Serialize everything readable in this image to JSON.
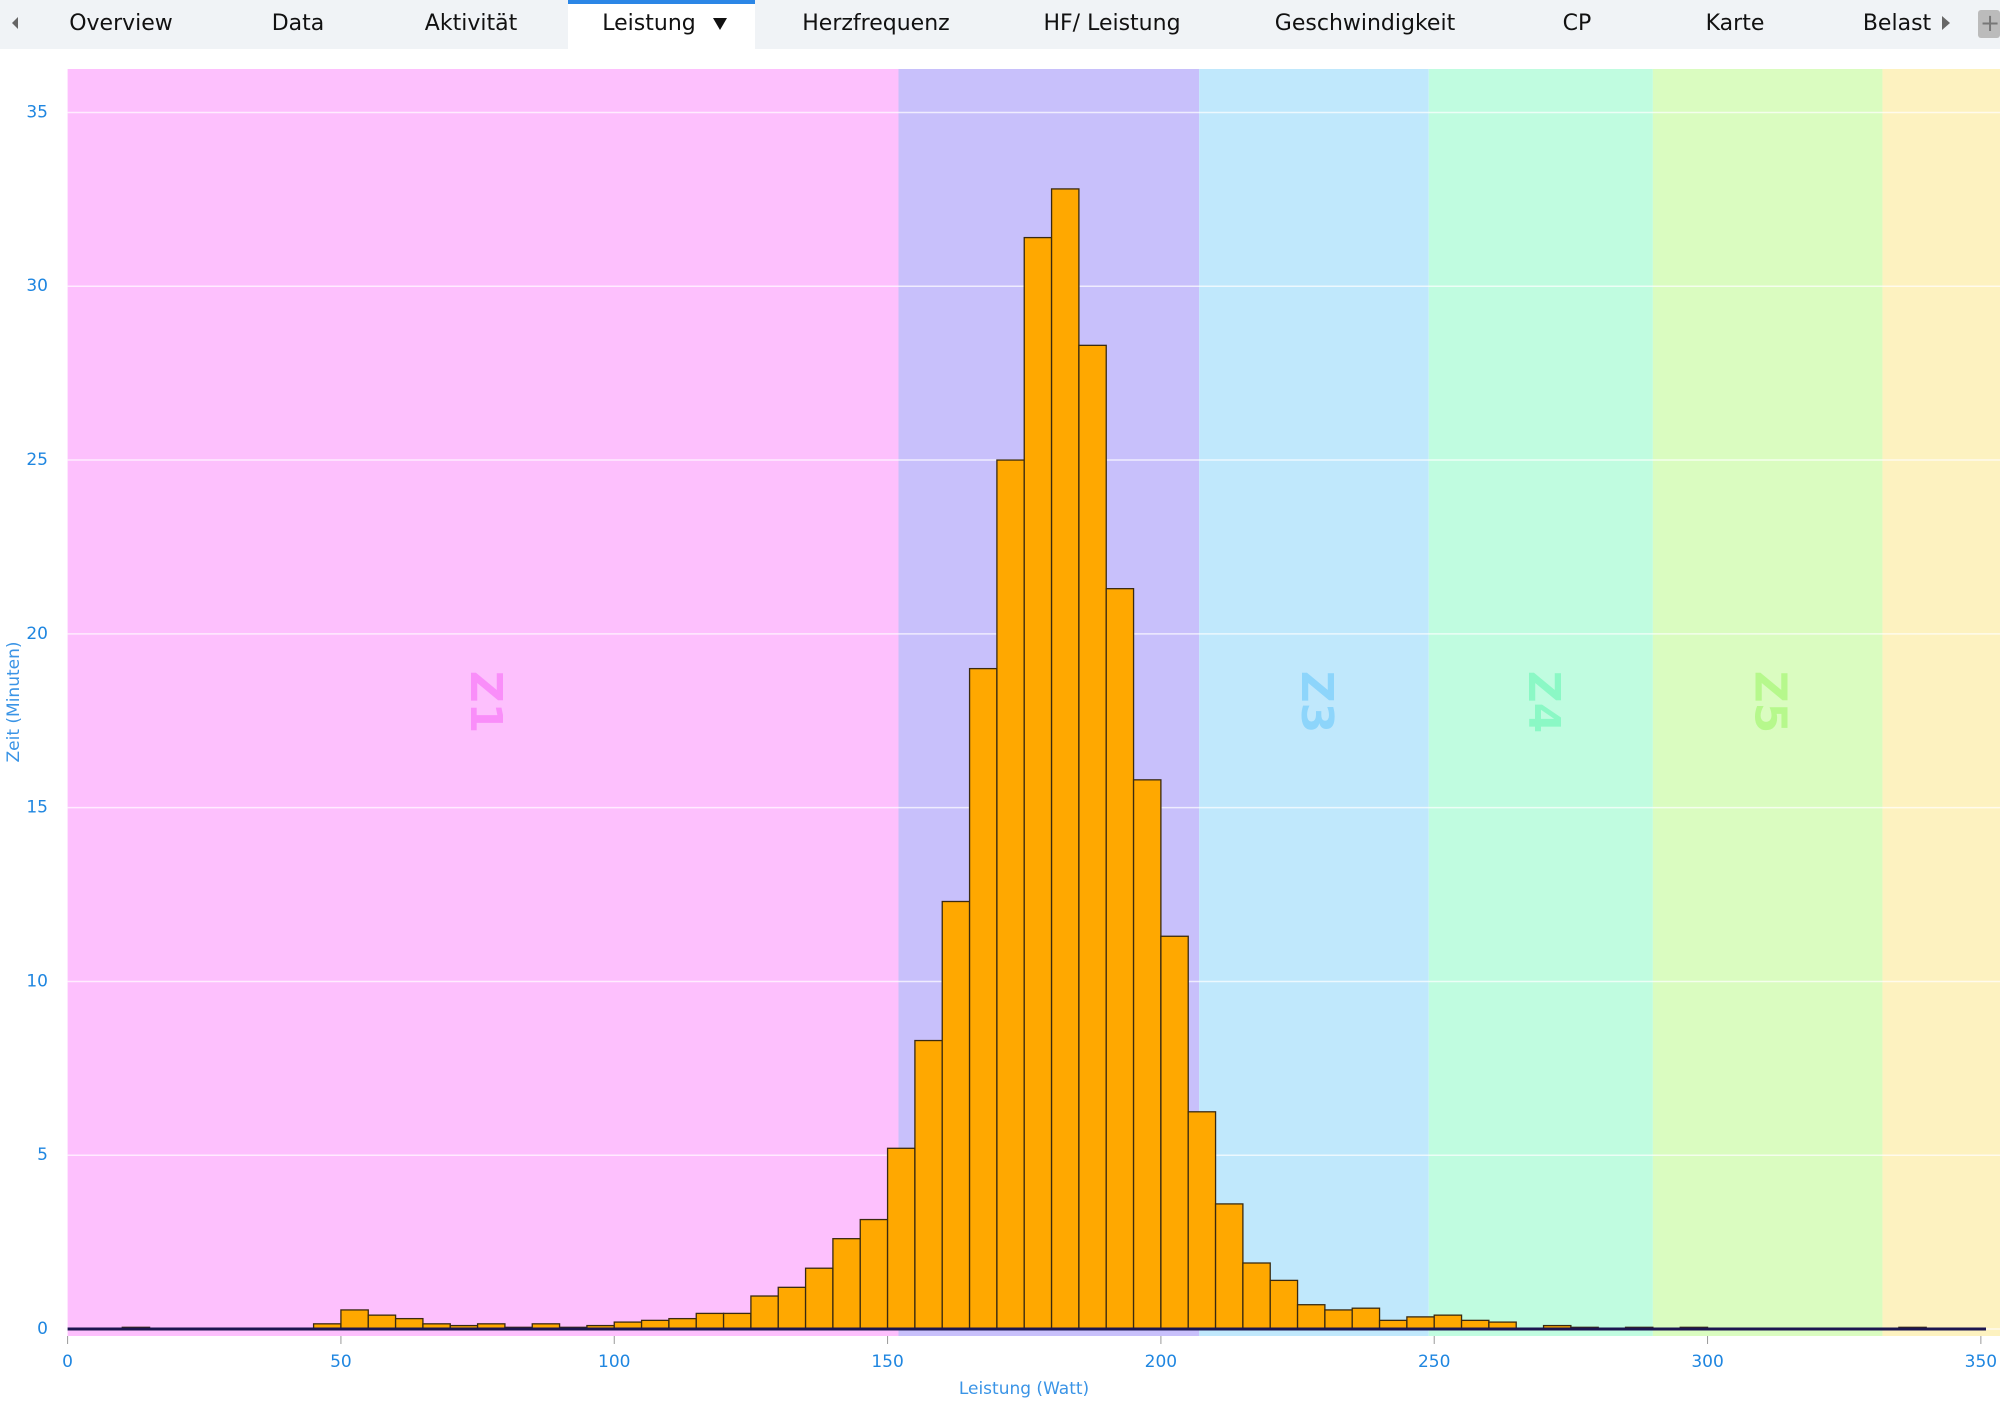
{
  "tabs": [
    {
      "label": "Overview"
    },
    {
      "label": "Data"
    },
    {
      "label": "Aktivität"
    },
    {
      "label": "Leistung",
      "active": true
    },
    {
      "label": "Herzfrequenz"
    },
    {
      "label": "HF/ Leistung"
    },
    {
      "label": "Geschwindigkeit"
    },
    {
      "label": "CP"
    },
    {
      "label": "Karte"
    },
    {
      "label": "Belast"
    }
  ],
  "chart_data": {
    "type": "histogram",
    "xlabel": "Leistung (Watt)",
    "ylabel": "Zeit (Minuten)",
    "bins": [
      0,
      5,
      10,
      15,
      20,
      25,
      30,
      35,
      40,
      45,
      50,
      55,
      60,
      65,
      70,
      75,
      80,
      85,
      90,
      95,
      100,
      105,
      110,
      115,
      120,
      125,
      130,
      135,
      140,
      145,
      150,
      155,
      160,
      165,
      170,
      175,
      180,
      185,
      190,
      195,
      200,
      205,
      210,
      215,
      220,
      225,
      230,
      235,
      240,
      245,
      250,
      255,
      260,
      265,
      270,
      275,
      280,
      285,
      290,
      295,
      300,
      305,
      310,
      315,
      320,
      325,
      330,
      335,
      340,
      345,
      350
    ],
    "counts": [
      0,
      0,
      0.05,
      0,
      0,
      0,
      0,
      0,
      0,
      0.15,
      0.55,
      0.4,
      0.3,
      0.15,
      0.1,
      0.15,
      0.05,
      0.15,
      0.05,
      0.1,
      0.2,
      0.25,
      0.3,
      0.45,
      0.45,
      0.95,
      1.2,
      1.75,
      2.6,
      3.15,
      5.2,
      8.3,
      12.3,
      19,
      25,
      31.4,
      32.8,
      28.3,
      21.3,
      15.8,
      11.3,
      6.25,
      3.6,
      1.9,
      1.4,
      0.7,
      0.55,
      0.6,
      0.25,
      0.35,
      0.4,
      0.25,
      0.2,
      0,
      0.1,
      0.05,
      0,
      0.05,
      0,
      0.05,
      0,
      0,
      0,
      0,
      0,
      0,
      0,
      0.05,
      0,
      0
    ],
    "color": "#ffa800",
    "zones": [
      {
        "label": "Z1",
        "from": 0,
        "to": 152,
        "color": "#fdc0fd",
        "label_color": "#f98ef9"
      },
      {
        "from": 152,
        "to": 207,
        "color": "#c8c0fb"
      },
      {
        "label": "Z3",
        "from": 207,
        "to": 249,
        "color": "#c0e8fc",
        "label_color": "#8dd5fb"
      },
      {
        "label": "Z4",
        "from": 249,
        "to": 290,
        "color": "#c0fce0",
        "label_color": "#8bf8c5"
      },
      {
        "label": "Z5",
        "from": 290,
        "to": 332,
        "color": "#dafcc0",
        "label_color": "#b6f88c"
      },
      {
        "from": 332,
        "to": 353.5,
        "color": "#fdf2c0"
      }
    ],
    "xlim": [
      0,
      353.5
    ],
    "ylim": [
      -0.2,
      36.25
    ],
    "xticks": [
      0,
      50,
      100,
      150,
      200,
      250,
      300,
      350
    ],
    "yticks": [
      0,
      5,
      10,
      15,
      20,
      25,
      30,
      35
    ],
    "grid": true
  }
}
